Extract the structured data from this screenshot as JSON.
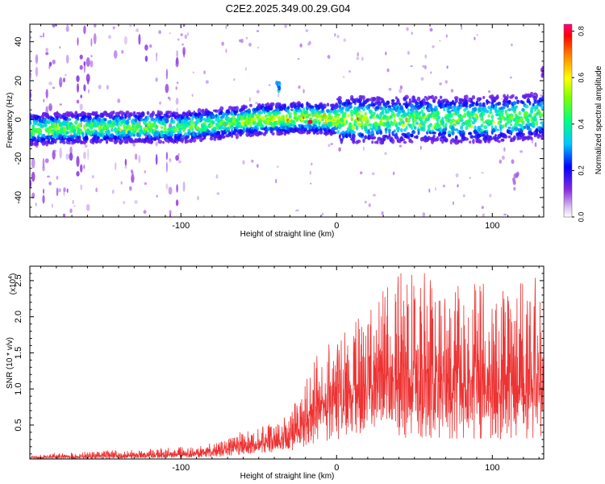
{
  "title": "C2E2.2025.349.00.29.G04",
  "chart_data": [
    {
      "type": "heatmap",
      "xlabel": "Height of straight line (km)",
      "ylabel": "Frequency (Hz)",
      "xlim": [
        -197,
        133
      ],
      "ylim": [
        -50,
        49
      ],
      "xticks": [
        -100,
        0,
        100
      ],
      "xtick_labels": [
        "-100",
        "0",
        "100"
      ],
      "yticks": [
        -40,
        -20,
        0,
        20,
        40
      ],
      "ytick_labels": [
        "-40",
        "-20",
        "0",
        "20",
        "40"
      ],
      "colorbar": {
        "label": "Normalized spectral amplitude",
        "range": [
          0,
          0.83
        ],
        "ticks": [
          0.0,
          0.2,
          0.4,
          0.6,
          0.8
        ],
        "tick_labels": [
          "0.0",
          "0.2",
          "0.4",
          "0.6",
          "0.8"
        ],
        "colormap": [
          "#e8d8f0",
          "#8a2be2",
          "#0000ff",
          "#00ffff",
          "#00ff00",
          "#ffff00",
          "#ff8000",
          "#ff0000",
          "#ff007f"
        ]
      },
      "ridge": {
        "x": [
          -197,
          -150,
          -100,
          -50,
          -20,
          0,
          50,
          100,
          133
        ],
        "center_freq": [
          -5,
          -4,
          -4,
          0,
          1,
          0,
          0,
          0,
          2
        ],
        "peak_amplitude": 0.8,
        "peak_x": -17
      },
      "features": [
        {
          "x": -38,
          "freq": 17,
          "amplitude": 0.35
        },
        {
          "x": 133,
          "freq": 25,
          "amplitude": 0.15
        },
        {
          "x": 115,
          "freq": -30,
          "amplitude": 0.1
        }
      ]
    },
    {
      "type": "line",
      "xlabel": "Height of straight line (km)",
      "ylabel": "SNR (10 * v/v)",
      "y_multiplier": "(x10",
      "y_multiplier_exp": "4",
      "y_multiplier_close": ")",
      "xlim": [
        -197,
        133
      ],
      "ylim": [
        0.03,
        2.7
      ],
      "xticks": [
        -100,
        0,
        100
      ],
      "xtick_labels": [
        "-100",
        "0",
        "100"
      ],
      "yticks": [
        0.5,
        1.0,
        1.5,
        2.0,
        2.5
      ],
      "ytick_labels": [
        "0.5",
        "1.0",
        "1.5",
        "2.0",
        "2.5"
      ],
      "series": [
        {
          "name": "SNR",
          "color": "#ee3333",
          "envelope": {
            "x": [
              -197,
              -170,
              -150,
              -120,
              -100,
              -85,
              -75,
              -65,
              -55,
              -40,
              -30,
              -20,
              -10,
              0,
              10,
              25,
              40,
              60,
              80,
              100,
              120,
              133
            ],
            "low": [
              0.03,
              0.03,
              0.03,
              0.04,
              0.04,
              0.05,
              0.06,
              0.08,
              0.1,
              0.12,
              0.14,
              0.2,
              0.25,
              0.3,
              0.35,
              0.45,
              0.3,
              0.3,
              0.3,
              0.3,
              0.3,
              0.3
            ],
            "high": [
              0.1,
              0.12,
              0.15,
              0.18,
              0.2,
              0.25,
              0.3,
              0.4,
              0.45,
              0.55,
              0.7,
              1.1,
              1.6,
              1.75,
              1.9,
              2.2,
              2.7,
              2.6,
              2.55,
              2.5,
              2.5,
              2.6
            ]
          }
        }
      ]
    }
  ]
}
